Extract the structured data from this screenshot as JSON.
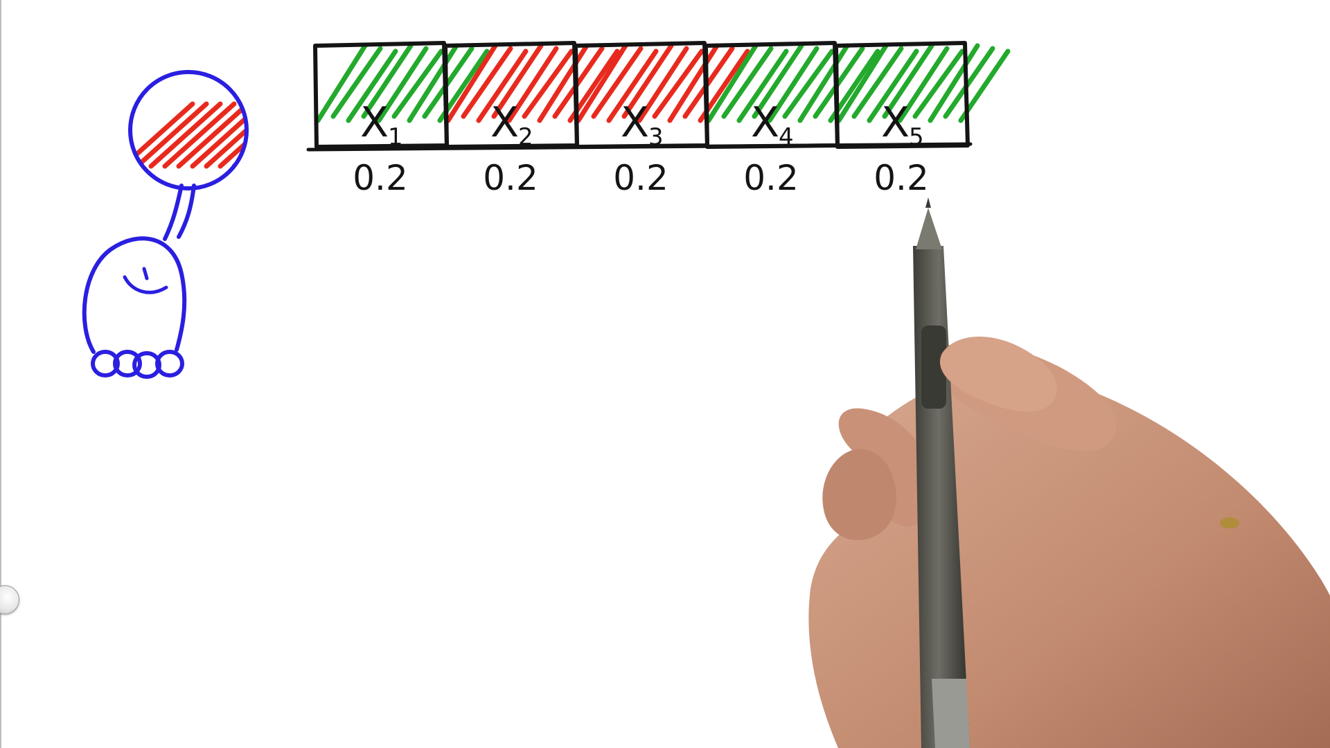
{
  "cells": [
    {
      "label": "X",
      "subscript": "1",
      "color": "green",
      "probability": "0.2"
    },
    {
      "label": "X",
      "subscript": "2",
      "color": "red",
      "probability": "0.2"
    },
    {
      "label": "X",
      "subscript": "3",
      "color": "red",
      "probability": "0.2"
    },
    {
      "label": "X",
      "subscript": "4",
      "color": "green",
      "probability": "0.2"
    },
    {
      "label": "X",
      "subscript": "5",
      "color": "green",
      "probability": "0.2"
    }
  ],
  "robot_thought_color": "red",
  "colors": {
    "ink": "#141414",
    "green": "#23a92c",
    "red": "#e82a1e",
    "robot_blue": "#2a1fe0",
    "skin": "#c9967d",
    "pen_body": "#5d5d55"
  }
}
